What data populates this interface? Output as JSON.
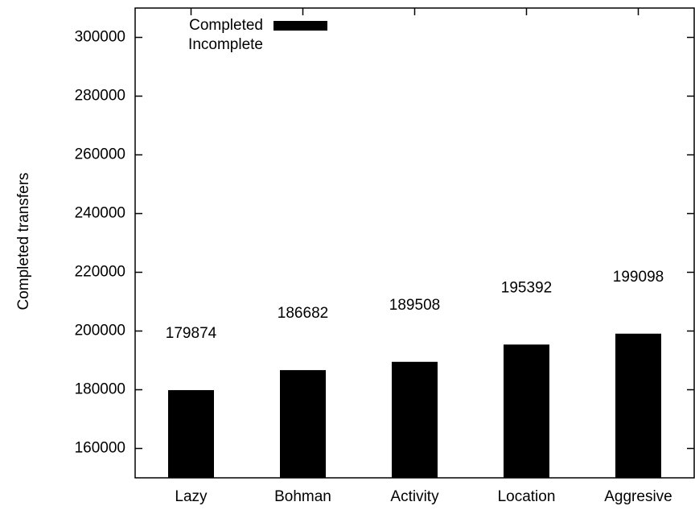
{
  "chart_data": {
    "type": "bar",
    "ylabel": "Completed transfers",
    "categories": [
      "Lazy",
      "Bohman",
      "Activity",
      "Location",
      "Aggresive"
    ],
    "series": [
      {
        "name": "Completed",
        "color": "#000000",
        "values": [
          179874,
          186682,
          189508,
          195392,
          199098
        ]
      },
      {
        "name": "Incomplete",
        "color": "#ffffff",
        "values": [
          null,
          null,
          null,
          null,
          null
        ]
      }
    ],
    "ylim": [
      150000,
      310000
    ],
    "yticks": [
      160000,
      180000,
      200000,
      220000,
      240000,
      260000,
      280000,
      300000
    ],
    "legend": "top-left"
  }
}
